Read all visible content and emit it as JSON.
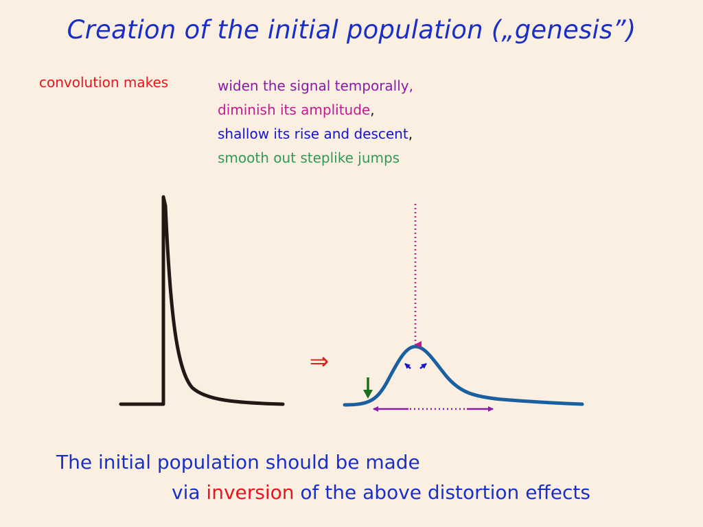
{
  "title": "Creation of the initial population („genesis”)",
  "lead": "convolution makes",
  "effects": [
    {
      "text": "widen the signal temporally,",
      "suffix": ""
    },
    {
      "text": "diminish its amplitude",
      "suffix": ","
    },
    {
      "text": "shallow its rise and descent",
      "suffix": ","
    },
    {
      "text": "smooth out steplike jumps",
      "suffix": ""
    }
  ],
  "implies_symbol": "⇒",
  "conclusion": {
    "line1": "The initial population should be made",
    "line2_prefix": "via ",
    "line2_highlight": "inversion",
    "line2_suffix": " of the above distortion effects"
  },
  "colors": {
    "title": "#1a2fc8",
    "lead": "#e8141e",
    "widen": "#8a1aa8",
    "amplitude": "#c21a8e",
    "rise": "#1414d2",
    "smooth": "#2e9a5a",
    "spike": "#231815",
    "smoothed": "#1a5fa0"
  }
}
